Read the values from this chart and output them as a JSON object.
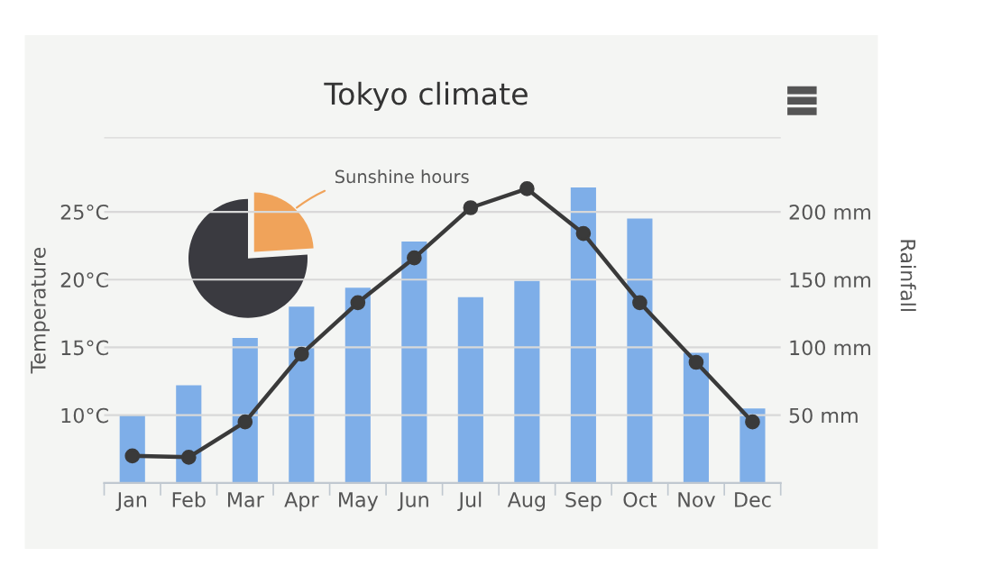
{
  "chart_data": [
    {
      "type": "bar",
      "title": "Tokyo climate",
      "categories": [
        "Jan",
        "Feb",
        "Mar",
        "Apr",
        "May",
        "Jun",
        "Jul",
        "Aug",
        "Sep",
        "Oct",
        "Nov",
        "Dec"
      ],
      "series": [
        {
          "type": "bar",
          "axis": "y2",
          "color": "#7eaee8",
          "values": [
            50,
            72,
            107,
            130,
            144,
            178,
            137,
            149,
            218,
            195,
            96,
            55
          ]
        },
        {
          "type": "line",
          "axis": "y",
          "color": "#3a3a3a",
          "marker": "circle",
          "values": [
            7.0,
            6.9,
            9.5,
            14.5,
            18.3,
            21.6,
            25.3,
            26.7,
            23.4,
            18.3,
            13.9,
            9.5
          ]
        }
      ],
      "ylabel": "Temperature",
      "y2label": "Rainfall",
      "ylim": [
        5,
        30.5
      ],
      "yticks": [
        {
          "value": 10,
          "label": "10°C"
        },
        {
          "value": 15,
          "label": "15°C"
        },
        {
          "value": 20,
          "label": "20°C"
        },
        {
          "value": 25,
          "label": "25°C"
        }
      ],
      "y2lim": [
        0,
        255
      ],
      "y2ticks": [
        {
          "value": 50,
          "label": "50 mm"
        },
        {
          "value": 100,
          "label": "100 mm"
        },
        {
          "value": 150,
          "label": "150 mm"
        },
        {
          "value": 200,
          "label": "200 mm"
        }
      ],
      "grid": "y",
      "legend": false
    },
    {
      "type": "pie",
      "categories": [
        "Sunshine hours",
        null
      ],
      "values": [
        24,
        76
      ],
      "colors": [
        "#f0a35a",
        "#3a3a40"
      ]
    }
  ]
}
